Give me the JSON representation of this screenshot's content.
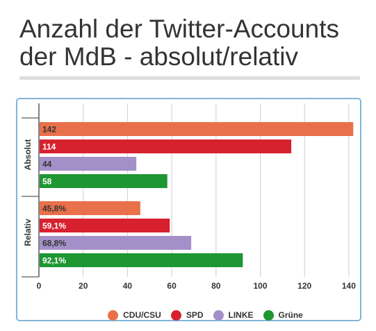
{
  "title_line1": "Anzahl der Twitter-Accounts",
  "title_line2": "der MdB - absolut/relativ",
  "chart_data": {
    "type": "bar",
    "orientation": "horizontal",
    "title": "Anzahl der Twitter-Accounts der MdB - absolut/relativ",
    "groups": [
      {
        "name": "Absolut",
        "bars": [
          {
            "party": "CDU/CSU",
            "value": 142,
            "label": "142"
          },
          {
            "party": "SPD",
            "value": 114,
            "label": "114"
          },
          {
            "party": "LINKE",
            "value": 44,
            "label": "44"
          },
          {
            "party": "Grüne",
            "value": 58,
            "label": "58"
          }
        ]
      },
      {
        "name": "Relativ",
        "bars": [
          {
            "party": "CDU/CSU",
            "value": 45.8,
            "label": "45,8%"
          },
          {
            "party": "SPD",
            "value": 59.1,
            "label": "59,1%"
          },
          {
            "party": "LINKE",
            "value": 68.8,
            "label": "68,8%"
          },
          {
            "party": "Grüne",
            "value": 92.1,
            "label": "92,1%"
          }
        ]
      }
    ],
    "x_ticks": [
      0,
      20,
      40,
      60,
      80,
      100,
      120,
      140
    ],
    "xlim": [
      0,
      145
    ],
    "grid": true,
    "legend_position": "bottom",
    "legend": [
      {
        "name": "CDU/CSU",
        "color": "#e8704a"
      },
      {
        "name": "SPD",
        "color": "#d7212f"
      },
      {
        "name": "LINKE",
        "color": "#a390c8"
      },
      {
        "name": "Grüne",
        "color": "#1e9632"
      }
    ],
    "label_colors": {
      "CDU/CSU": "#333333",
      "SPD": "#ffffff",
      "LINKE": "#333333",
      "Grüne": "#ffffff"
    }
  }
}
